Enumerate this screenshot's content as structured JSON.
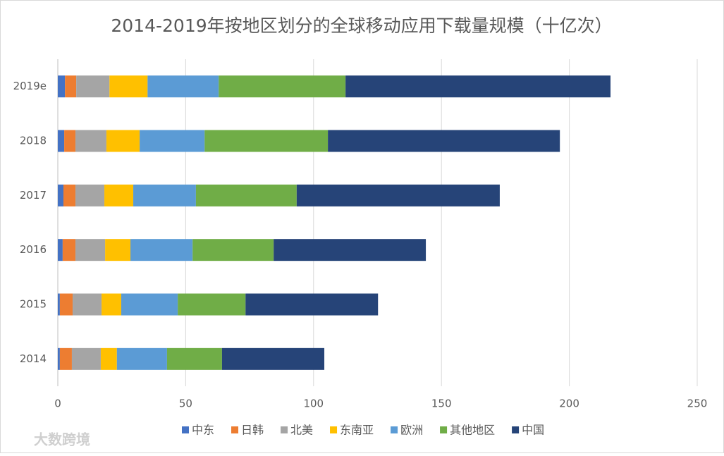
{
  "chart_data": {
    "type": "stacked-bar-horizontal",
    "title": "2014-2019年按地区划分的全球移动应用下载量规模（十亿次）",
    "categories": [
      "2014",
      "2015",
      "2016",
      "2017",
      "2018",
      "2019e"
    ],
    "series": [
      {
        "name": "中东",
        "color": "#4472c4",
        "values": [
          0.8,
          0.8,
          1.9,
          2.2,
          2.5,
          2.8
        ]
      },
      {
        "name": "日韩",
        "color": "#ed7d31",
        "values": [
          4.7,
          5.0,
          5.0,
          4.7,
          4.4,
          4.4
        ]
      },
      {
        "name": "北美",
        "color": "#a5a5a5",
        "values": [
          11.3,
          11.3,
          11.6,
          11.3,
          12.1,
          13.0
        ]
      },
      {
        "name": "东南亚",
        "color": "#ffc000",
        "values": [
          6.3,
          7.7,
          9.9,
          11.3,
          13.0,
          14.9
        ]
      },
      {
        "name": "欧洲",
        "color": "#5b9bd5",
        "values": [
          19.6,
          22.1,
          24.3,
          24.5,
          25.4,
          27.8
        ]
      },
      {
        "name": "其他地区",
        "color": "#70ad47",
        "values": [
          21.5,
          26.5,
          31.7,
          39.4,
          48.2,
          49.6
        ]
      },
      {
        "name": "中国",
        "color": "#264478",
        "values": [
          40.0,
          51.8,
          59.5,
          79.4,
          90.7,
          103.6
        ]
      }
    ],
    "xlim": [
      0,
      250
    ],
    "xticks": [
      0,
      50,
      100,
      150,
      200,
      250
    ],
    "grid": true,
    "legend": "bottom",
    "watermark": "大数跨境"
  }
}
